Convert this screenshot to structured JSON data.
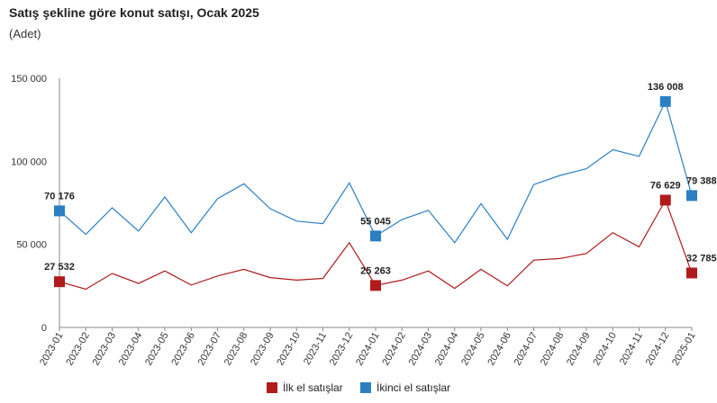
{
  "header": {
    "title": "Satış şekline göre konut satışı, Ocak 2025",
    "subtitle": "(Adet)"
  },
  "colors": {
    "series1": "#b01b1b",
    "series2": "#2b7fc3",
    "axis": "#888888",
    "grid": "#d9d9d9"
  },
  "chart_data": {
    "type": "line",
    "title": "Satış şekline göre konut satışı, Ocak 2025",
    "subtitle": "(Adet)",
    "ylim": [
      0,
      150000
    ],
    "yticks": [
      0,
      50000,
      100000,
      150000
    ],
    "ytick_labels": [
      "0",
      "50 000",
      "100 000",
      "150 000"
    ],
    "grid": false,
    "legend_position": "bottom",
    "x": [
      "2023-01",
      "2023-02",
      "2023-03",
      "2023-04",
      "2023-05",
      "2023-06",
      "2023-07",
      "2023-08",
      "2023-09",
      "2023-10",
      "2023-11",
      "2023-12",
      "2024-01",
      "2024-02",
      "2024-03",
      "2024-04",
      "2024-05",
      "2024-06",
      "2024-07",
      "2024-08",
      "2024-09",
      "2024-10",
      "2024-11",
      "2024-12",
      "2025-01"
    ],
    "series": [
      {
        "name": "İlk el satışlar",
        "values": [
          27532,
          23000,
          32500,
          26500,
          34000,
          25500,
          31000,
          35000,
          30000,
          28500,
          29500,
          51000,
          25263,
          28500,
          34000,
          23500,
          35000,
          25000,
          40500,
          41500,
          44500,
          57000,
          48500,
          76629,
          32785
        ]
      },
      {
        "name": "İkinci el satışlar",
        "values": [
          70176,
          56000,
          72000,
          58000,
          78500,
          57000,
          77500,
          86500,
          71500,
          64000,
          62500,
          87000,
          55045,
          65000,
          70500,
          51000,
          74500,
          53000,
          86000,
          91500,
          95500,
          107000,
          103000,
          136008,
          79388
        ]
      }
    ],
    "data_labels": [
      {
        "series": 0,
        "index": 0,
        "text": "27 532"
      },
      {
        "series": 0,
        "index": 12,
        "text": "25 263"
      },
      {
        "series": 0,
        "index": 23,
        "text": "76 629"
      },
      {
        "series": 0,
        "index": 24,
        "text": "32 785"
      },
      {
        "series": 1,
        "index": 0,
        "text": "70 176"
      },
      {
        "series": 1,
        "index": 12,
        "text": "55 045"
      },
      {
        "series": 1,
        "index": 23,
        "text": "136 008"
      },
      {
        "series": 1,
        "index": 24,
        "text": "79 388"
      }
    ]
  }
}
